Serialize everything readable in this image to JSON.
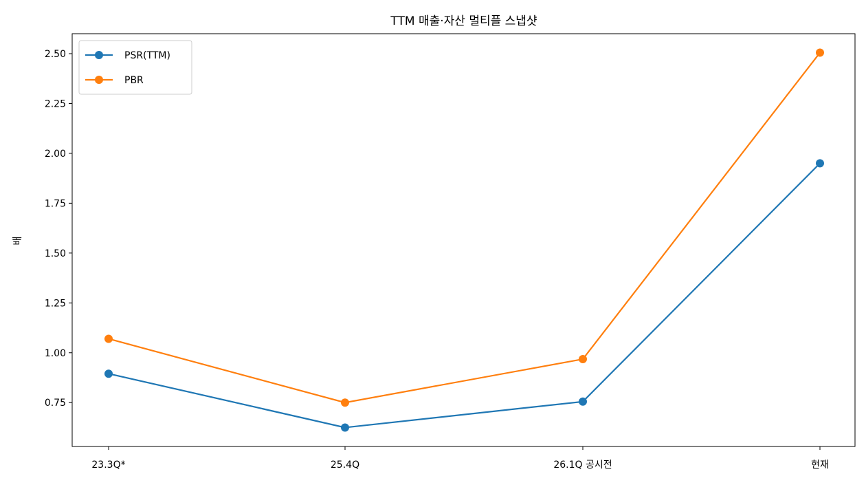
{
  "chart_data": {
    "type": "line",
    "title": "TTM 매출·자산 멀티플 스냅샷",
    "xlabel": "",
    "ylabel": "배",
    "categories": [
      "23.3Q*",
      "25.4Q",
      "26.1Q 공시전",
      "현재"
    ],
    "series": [
      {
        "name": "PSR(TTM)",
        "values": [
          0.895,
          0.625,
          0.755,
          1.95
        ],
        "color": "#1f77b4"
      },
      {
        "name": "PBR",
        "values": [
          1.07,
          0.75,
          0.968,
          2.505
        ],
        "color": "#ff7f0e"
      }
    ],
    "ylim": [
      0.53,
      2.6
    ],
    "yticks": [
      "0.75",
      "1.00",
      "1.25",
      "1.50",
      "1.75",
      "2.00",
      "2.25",
      "2.50"
    ],
    "grid": false,
    "legend_position": "top-left"
  }
}
